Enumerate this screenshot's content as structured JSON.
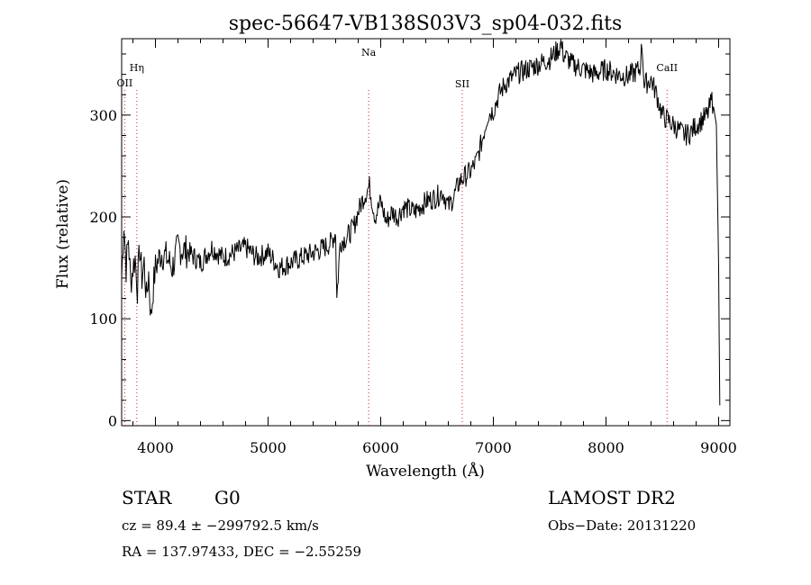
{
  "chart_data": {
    "type": "line",
    "title": "spec-56647-VB138S03V3_sp04-032.fits",
    "xlabel": "Wavelength (Å)",
    "ylabel": "Flux (relative)",
    "xlim": [
      3700,
      9100
    ],
    "ylim": [
      -5,
      375
    ],
    "xticks": [
      4000,
      5000,
      6000,
      7000,
      8000,
      9000
    ],
    "yticks": [
      0,
      100,
      200,
      300
    ],
    "grid": false,
    "series": [
      {
        "x": [
          3700,
          3720,
          3740,
          3760,
          3780,
          3800,
          3820,
          3840,
          3860,
          3880,
          3900,
          3920,
          3940,
          3960,
          3980,
          4000,
          4050,
          4100,
          4150,
          4200,
          4300,
          4400,
          4500,
          4600,
          4700,
          4800,
          4900,
          5000,
          5100,
          5200,
          5300,
          5400,
          5500,
          5560,
          5600,
          5610,
          5640,
          5700,
          5760,
          5800,
          5850,
          5900,
          5950,
          6000,
          6050,
          6100,
          6150,
          6200,
          6300,
          6400,
          6500,
          6550,
          6600,
          6650,
          6700,
          6750,
          6800,
          6850,
          6900,
          6950,
          7000,
          7050,
          7100,
          7150,
          7200,
          7300,
          7400,
          7500,
          7580,
          7600,
          7620,
          7700,
          7800,
          7900,
          8000,
          8100,
          8200,
          8300,
          8320,
          8340,
          8400,
          8450,
          8500,
          8550,
          8600,
          8650,
          8700,
          8750,
          8800,
          8850,
          8900,
          8940,
          8960,
          8980,
          9000,
          9010
        ],
        "y": [
          140,
          195,
          150,
          180,
          135,
          150,
          160,
          130,
          170,
          140,
          155,
          120,
          145,
          100,
          130,
          150,
          165,
          160,
          150,
          170,
          165,
          155,
          170,
          160,
          165,
          170,
          160,
          165,
          150,
          155,
          160,
          165,
          170,
          175,
          185,
          120,
          175,
          180,
          190,
          205,
          220,
          230,
          200,
          215,
          195,
          205,
          200,
          210,
          205,
          215,
          220,
          225,
          210,
          220,
          235,
          240,
          245,
          255,
          275,
          300,
          305,
          320,
          330,
          335,
          340,
          345,
          350,
          355,
          365,
          370,
          360,
          350,
          345,
          340,
          345,
          340,
          338,
          345,
          370,
          330,
          335,
          320,
          300,
          295,
          290,
          285,
          280,
          283,
          290,
          295,
          300,
          315,
          305,
          290,
          150,
          15
        ]
      }
    ],
    "lines": [
      {
        "label": "OII",
        "x": 3727
      },
      {
        "label": "Hη",
        "x": 3835
      },
      {
        "label": "Na",
        "x": 5893
      },
      {
        "label": "SII",
        "x": 6724
      },
      {
        "label": "CaII",
        "x": 8542
      }
    ]
  },
  "info": {
    "object": "STAR",
    "subclass": "G0",
    "survey": "LAMOST DR2",
    "cz": "cz = 89.4 ± −299792.5 km/s",
    "obsdate": "Obs−Date: 20131220",
    "radec": "RA = 137.97433, DEC =  −2.55259"
  }
}
